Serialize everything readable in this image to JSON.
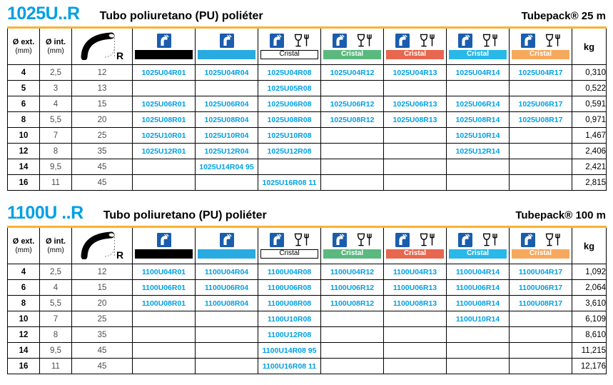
{
  "colors": {
    "accent_cyan": "#00A0E4",
    "rule_orange": "#F9B233",
    "icon_blue": "#1A5DAD",
    "bar_black": "#000000",
    "bar_cyan": "#29ABE2",
    "cristal_white": "#FFFFFF",
    "cristal_green": "#5BB97F",
    "cristal_red": "#E8674F",
    "cristal_cyan": "#29B8E8",
    "cristal_orange": "#F6A95C",
    "dim_text_gray": "#4D4D4D"
  },
  "radius_label": "R",
  "columns": [
    {
      "type": "dim",
      "line1": "Ø ext.",
      "line2": "(mm)"
    },
    {
      "type": "dim",
      "line1": "Ø int.",
      "line2": "(mm)"
    },
    {
      "type": "radius",
      "icon": "bend-radius-icon",
      "label": "R"
    },
    {
      "type": "bar",
      "icon": "tube-icon",
      "bar_color": "#000000"
    },
    {
      "type": "bar",
      "icon": "tube-icon",
      "bar_color": "#29ABE2"
    },
    {
      "type": "cristal",
      "icons": [
        "tube-icon",
        "food-safe-icon"
      ],
      "label": "Cristal",
      "bg": "#FFFFFF",
      "fg": "#000000",
      "bordered": true
    },
    {
      "type": "cristal",
      "icons": [
        "tube-icon",
        "food-safe-icon"
      ],
      "label": "Cristal",
      "bg": "#5BB97F",
      "fg": "#FFFFFF",
      "bordered": false
    },
    {
      "type": "cristal",
      "icons": [
        "tube-icon",
        "food-safe-icon"
      ],
      "label": "Cristal",
      "bg": "#E8674F",
      "fg": "#FFFFFF",
      "bordered": false
    },
    {
      "type": "cristal",
      "icons": [
        "tube-icon",
        "food-safe-icon"
      ],
      "label": "Cristal",
      "bg": "#29B8E8",
      "fg": "#FFFFFF",
      "bordered": false
    },
    {
      "type": "cristal",
      "icons": [
        "tube-icon",
        "food-safe-icon"
      ],
      "label": "Cristal",
      "bg": "#F6A95C",
      "fg": "#FFFFFF",
      "bordered": false
    },
    {
      "type": "kg",
      "label": "kg"
    }
  ],
  "tables": [
    {
      "title": "1025U..R",
      "subtitle": "Tubo poliuretano (PU) poliéter",
      "pack": "Tubepack® 25 m",
      "rows": [
        [
          "4",
          "2,5",
          "12",
          "1025U04R01",
          "1025U04R04",
          "1025U04R08",
          "1025U04R12",
          "1025U04R13",
          "1025U04R14",
          "1025U04R17",
          "0,310"
        ],
        [
          "5",
          "3",
          "13",
          "",
          "",
          "1025U05R08",
          "",
          "",
          "",
          "",
          "0,522"
        ],
        [
          "6",
          "4",
          "15",
          "1025U06R01",
          "1025U06R04",
          "1025U06R08",
          "1025U06R12",
          "1025U06R13",
          "1025U06R14",
          "1025U06R17",
          "0,591"
        ],
        [
          "8",
          "5,5",
          "20",
          "1025U08R01",
          "1025U08R04",
          "1025U08R08",
          "1025U08R12",
          "1025U08R13",
          "1025U08R14",
          "1025U08R17",
          "0,971"
        ],
        [
          "10",
          "7",
          "25",
          "1025U10R01",
          "1025U10R04",
          "1025U10R08",
          "",
          "",
          "1025U10R14",
          "",
          "1,467"
        ],
        [
          "12",
          "8",
          "35",
          "1025U12R01",
          "1025U12R04",
          "1025U12R08",
          "",
          "",
          "1025U12R14",
          "",
          "2,406"
        ],
        [
          "14",
          "9,5",
          "45",
          "",
          "1025U14R04 95",
          "",
          "",
          "",
          "",
          "",
          "2,421"
        ],
        [
          "16",
          "11",
          "45",
          "",
          "",
          "1025U16R08 11",
          "",
          "",
          "",
          "",
          "2,815"
        ]
      ]
    },
    {
      "title": "1100U ..R",
      "subtitle": "Tubo poliuretano (PU) poliéter",
      "pack": "Tubepack® 100 m",
      "rows": [
        [
          "4",
          "2,5",
          "12",
          "1100U04R01",
          "1100U04R04",
          "1100U04R08",
          "1100U04R12",
          "1100U04R13",
          "1100U04R14",
          "1100U04R17",
          "1,092"
        ],
        [
          "6",
          "4",
          "15",
          "1100U06R01",
          "1100U06R04",
          "1100U06R08",
          "1100U06R12",
          "1100U06R13",
          "1100U06R14",
          "1100U06R17",
          "2,064"
        ],
        [
          "8",
          "5,5",
          "20",
          "1100U08R01",
          "1100U08R04",
          "1100U08R08",
          "1100U08R12",
          "1100U08R13",
          "1100U08R14",
          "1100U08R17",
          "3,610"
        ],
        [
          "10",
          "7",
          "25",
          "",
          "",
          "1100U10R08",
          "",
          "",
          "1100U10R14",
          "",
          "6,109"
        ],
        [
          "12",
          "8",
          "35",
          "",
          "",
          "1100U12R08",
          "",
          "",
          "",
          "",
          "8,610"
        ],
        [
          "14",
          "9,5",
          "45",
          "",
          "",
          "1100U14R08 95",
          "",
          "",
          "",
          "",
          "11,215"
        ],
        [
          "16",
          "11",
          "45",
          "",
          "",
          "1100U16R08 11",
          "",
          "",
          "",
          "",
          "12,176"
        ]
      ]
    }
  ]
}
